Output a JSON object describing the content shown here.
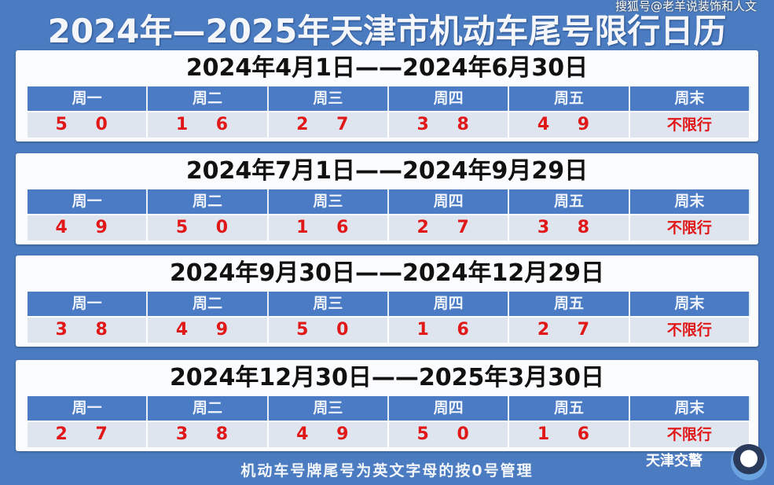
{
  "title": "2024年—2025年天津市机动车尾号限行日历",
  "watermark": "搜狐号@老羊说装饰和人文",
  "days": [
    "周一",
    "周二",
    "周三",
    "周四",
    "周五",
    "周末"
  ],
  "periods": [
    {
      "range": "2024年4月1日——2024年6月30日",
      "values": [
        "5 0",
        "1 6",
        "2 7",
        "3 8",
        "4 9",
        "不限行"
      ]
    },
    {
      "range": "2024年7月1日——2024年9月29日",
      "values": [
        "4 9",
        "5 0",
        "1 6",
        "2 7",
        "3 8",
        "不限行"
      ]
    },
    {
      "range": "2024年9月30日——2024年12月29日",
      "values": [
        "3 8",
        "4 9",
        "5 0",
        "1 6",
        "2 7",
        "不限行"
      ]
    },
    {
      "range": "2024年12月30日——2025年3月30日",
      "values": [
        "2 7",
        "3 8",
        "4 9",
        "5 0",
        "1 6",
        "不限行"
      ]
    }
  ],
  "footer": "机动车号牌尾号为英文字母的按0号管理",
  "logo_text": "天津交警",
  "colors": {
    "background": "#4b7cc1",
    "header": "#4a7bc4",
    "restricted_number": "#e01818"
  }
}
